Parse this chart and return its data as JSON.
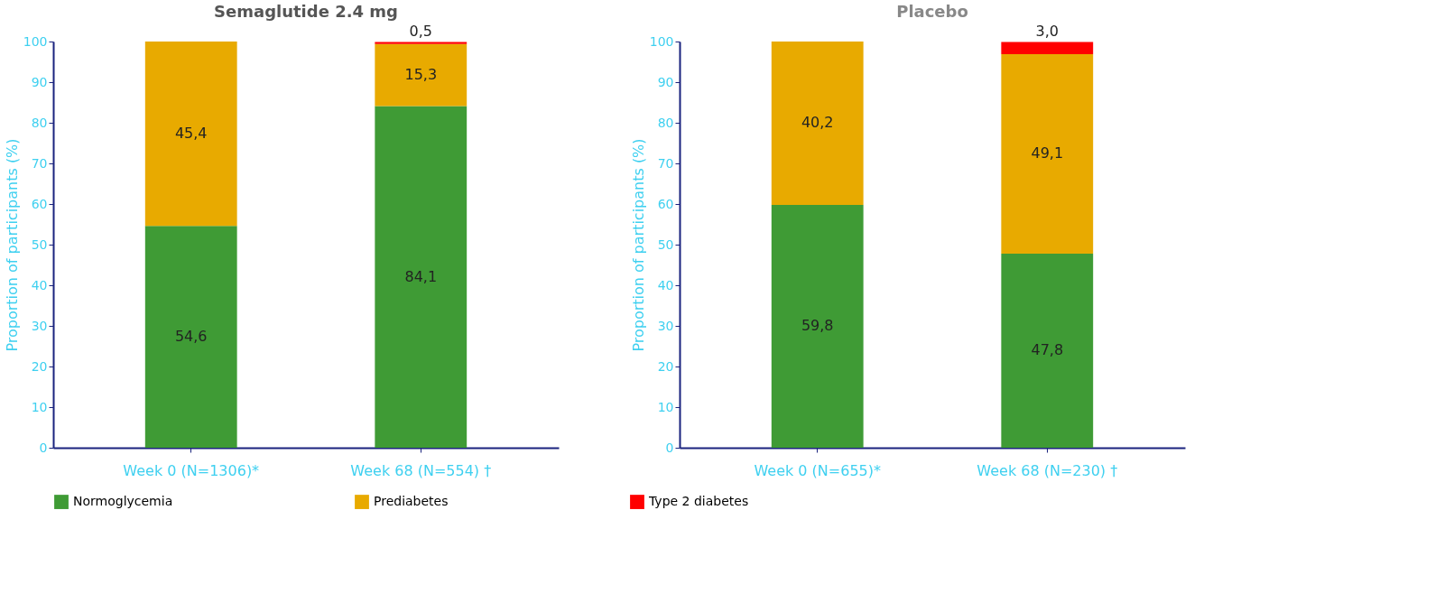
{
  "chart_data": [
    {
      "type": "bar",
      "title": "Semaglutide 2.4 mg",
      "ylabel": "Proportion of participants (%)",
      "categories": [
        "Week 0 (N=1306)*",
        "Week 68 (N=554)   †"
      ],
      "stacked": true,
      "ylim": [
        0,
        100
      ],
      "yticks": [
        0,
        10,
        20,
        30,
        40,
        50,
        60,
        70,
        80,
        90,
        100
      ],
      "grid": false,
      "legend": "bottom",
      "series": [
        {
          "name": "Normoglycemia",
          "color": "#3f9b35",
          "values": [
            54.6,
            84.1
          ],
          "value_labels": [
            "54,6",
            "84,1"
          ]
        },
        {
          "name": "Prediabetes",
          "color": "#e8aa00",
          "values": [
            45.4,
            15.3
          ],
          "value_labels": [
            "45,4",
            "15,3"
          ]
        },
        {
          "name": "Type 2 diabetes",
          "color": "#ff0000",
          "values": [
            null,
            0.5
          ],
          "value_labels": [
            null,
            "0,5"
          ]
        }
      ]
    },
    {
      "type": "bar",
      "title": "Placebo",
      "ylabel": "Proportion of participants (%)",
      "categories": [
        "Week 0 (N=655)*",
        "Week 68 (N=230)   †"
      ],
      "stacked": true,
      "ylim": [
        0,
        100
      ],
      "yticks": [
        0,
        10,
        20,
        30,
        40,
        50,
        60,
        70,
        80,
        90,
        100
      ],
      "grid": false,
      "legend": "bottom",
      "series": [
        {
          "name": "Normoglycemia",
          "color": "#3f9b35",
          "values": [
            59.8,
            47.8
          ],
          "value_labels": [
            "59,8",
            "47,8"
          ]
        },
        {
          "name": "Prediabetes",
          "color": "#e8aa00",
          "values": [
            40.2,
            49.1
          ],
          "value_labels": [
            "40,2",
            "49,1"
          ]
        },
        {
          "name": "Type 2 diabetes",
          "color": "#ff0000",
          "values": [
            null,
            3.0
          ],
          "value_labels": [
            null,
            "3,0"
          ]
        }
      ]
    }
  ]
}
